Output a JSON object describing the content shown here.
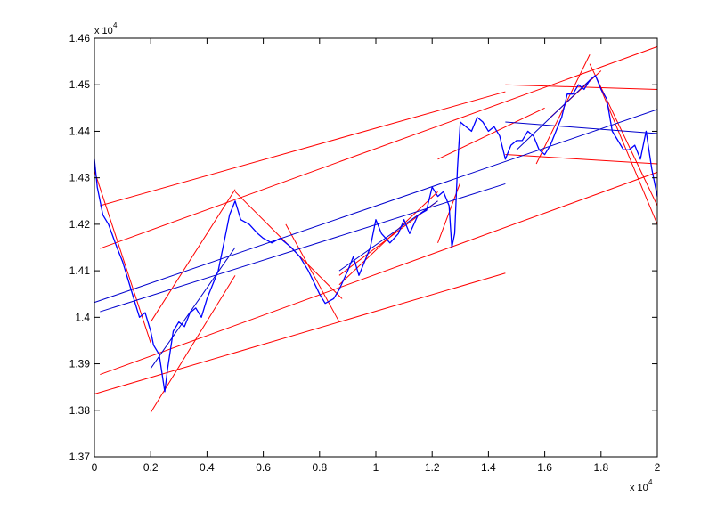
{
  "chart_data": {
    "type": "line",
    "title": "",
    "xlabel": "",
    "ylabel": "",
    "x_multiplier_label": "x 10",
    "x_multiplier_exp": "4",
    "y_multiplier_label": "x 10",
    "y_multiplier_exp": "4",
    "xlim": [
      0,
      2
    ],
    "ylim": [
      1.37,
      1.46
    ],
    "x_ticks": [
      0,
      0.2,
      0.4,
      0.6,
      0.8,
      1,
      1.2,
      1.4,
      1.6,
      1.8,
      2
    ],
    "x_tick_labels": [
      "0",
      "0.2",
      "0.4",
      "0.6",
      "0.8",
      "1",
      "1.2",
      "1.4",
      "1.6",
      "1.8",
      "2"
    ],
    "y_ticks": [
      1.37,
      1.38,
      1.39,
      1.4,
      1.41,
      1.42,
      1.43,
      1.44,
      1.45,
      1.46
    ],
    "y_tick_labels": [
      "1.37",
      "1.38",
      "1.39",
      "1.4",
      "1.41",
      "1.42",
      "1.43",
      "1.44",
      "1.45",
      "1.46"
    ],
    "grid": false,
    "colors": {
      "price": "#0000ff",
      "channel": "#ff0000",
      "trend": "#0000cc"
    },
    "price_series": {
      "x": [
        0,
        0.01,
        0.03,
        0.05,
        0.08,
        0.1,
        0.13,
        0.15,
        0.16,
        0.18,
        0.2,
        0.21,
        0.23,
        0.25,
        0.26,
        0.28,
        0.3,
        0.32,
        0.34,
        0.36,
        0.38,
        0.4,
        0.42,
        0.44,
        0.46,
        0.48,
        0.5,
        0.52,
        0.55,
        0.58,
        0.6,
        0.63,
        0.66,
        0.7,
        0.73,
        0.76,
        0.8,
        0.82,
        0.85,
        0.87,
        0.9,
        0.92,
        0.94,
        0.96,
        0.98,
        1.0,
        1.02,
        1.05,
        1.08,
        1.1,
        1.12,
        1.15,
        1.18,
        1.2,
        1.22,
        1.24,
        1.26,
        1.27,
        1.28,
        1.29,
        1.3,
        1.32,
        1.34,
        1.36,
        1.38,
        1.4,
        1.42,
        1.44,
        1.46,
        1.48,
        1.5,
        1.52,
        1.54,
        1.56,
        1.58,
        1.6,
        1.62,
        1.64,
        1.66,
        1.68,
        1.7,
        1.72,
        1.74,
        1.76,
        1.78,
        1.8,
        1.82,
        1.84,
        1.86,
        1.88,
        1.9,
        1.92,
        1.94,
        1.96,
        1.98,
        2.0
      ],
      "y": [
        1.434,
        1.428,
        1.422,
        1.42,
        1.415,
        1.412,
        1.406,
        1.402,
        1.4,
        1.401,
        1.397,
        1.394,
        1.392,
        1.384,
        1.389,
        1.397,
        1.399,
        1.398,
        1.401,
        1.402,
        1.4,
        1.404,
        1.407,
        1.41,
        1.416,
        1.422,
        1.425,
        1.421,
        1.42,
        1.418,
        1.417,
        1.416,
        1.417,
        1.415,
        1.413,
        1.41,
        1.405,
        1.403,
        1.404,
        1.406,
        1.41,
        1.413,
        1.409,
        1.412,
        1.415,
        1.421,
        1.418,
        1.416,
        1.418,
        1.421,
        1.418,
        1.422,
        1.423,
        1.428,
        1.426,
        1.427,
        1.424,
        1.415,
        1.418,
        1.432,
        1.442,
        1.441,
        1.44,
        1.443,
        1.442,
        1.44,
        1.441,
        1.439,
        1.434,
        1.437,
        1.438,
        1.438,
        1.44,
        1.439,
        1.436,
        1.435,
        1.437,
        1.44,
        1.443,
        1.448,
        1.448,
        1.45,
        1.449,
        1.451,
        1.452,
        1.449,
        1.447,
        1.44,
        1.438,
        1.436,
        1.436,
        1.437,
        1.434,
        1.44,
        1.432,
        1.426
      ]
    },
    "channel_lines": [
      {
        "x": [
          0.02,
          1.46
        ],
        "y": [
          1.424,
          1.4485
        ]
      },
      {
        "x": [
          0.02,
          2.0
        ],
        "y": [
          1.4148,
          1.4582
        ]
      },
      {
        "x": [
          0.02,
          2.0
        ],
        "y": [
          1.3877,
          1.4312
        ]
      },
      {
        "x": [
          0.0,
          1.46
        ],
        "y": [
          1.3835,
          1.4095
        ]
      },
      {
        "x": [
          0.0,
          0.2
        ],
        "y": [
          1.4315,
          1.3945
        ]
      },
      {
        "x": [
          0.2,
          0.5
        ],
        "y": [
          1.399,
          1.4275
        ]
      },
      {
        "x": [
          0.2,
          0.5
        ],
        "y": [
          1.3795,
          1.409
        ]
      },
      {
        "x": [
          0.5,
          0.88
        ],
        "y": [
          1.427,
          1.404
        ]
      },
      {
        "x": [
          0.68,
          0.87
        ],
        "y": [
          1.42,
          1.399
        ]
      },
      {
        "x": [
          0.87,
          1.22
        ],
        "y": [
          1.407,
          1.427
        ]
      },
      {
        "x": [
          0.87,
          1.22
        ],
        "y": [
          1.409,
          1.425
        ]
      },
      {
        "x": [
          1.22,
          1.3
        ],
        "y": [
          1.416,
          1.429
        ]
      },
      {
        "x": [
          1.22,
          1.6
        ],
        "y": [
          1.434,
          1.445
        ]
      },
      {
        "x": [
          1.46,
          2.0
        ],
        "y": [
          1.45,
          1.449
        ]
      },
      {
        "x": [
          1.46,
          2.0
        ],
        "y": [
          1.435,
          1.433
        ]
      },
      {
        "x": [
          1.57,
          1.76
        ],
        "y": [
          1.433,
          1.4565
        ]
      },
      {
        "x": [
          1.62,
          1.8
        ],
        "y": [
          1.443,
          1.453
        ]
      },
      {
        "x": [
          1.8,
          2.0
        ],
        "y": [
          1.449,
          1.42
        ]
      },
      {
        "x": [
          1.76,
          2.0
        ],
        "y": [
          1.4545,
          1.424
        ]
      }
    ],
    "trend_lines": [
      {
        "x": [
          0.0,
          2.0
        ],
        "y": [
          1.4032,
          1.4447
        ]
      },
      {
        "x": [
          0.02,
          1.46
        ],
        "y": [
          1.4012,
          1.4287
        ]
      },
      {
        "x": [
          1.46,
          2.0
        ],
        "y": [
          1.442,
          1.4395
        ]
      },
      {
        "x": [
          0.2,
          0.5
        ],
        "y": [
          1.389,
          1.415
        ]
      },
      {
        "x": [
          0.87,
          1.22
        ],
        "y": [
          1.41,
          1.425
        ]
      },
      {
        "x": [
          1.5,
          1.76
        ],
        "y": [
          1.436,
          1.451
        ]
      }
    ]
  }
}
